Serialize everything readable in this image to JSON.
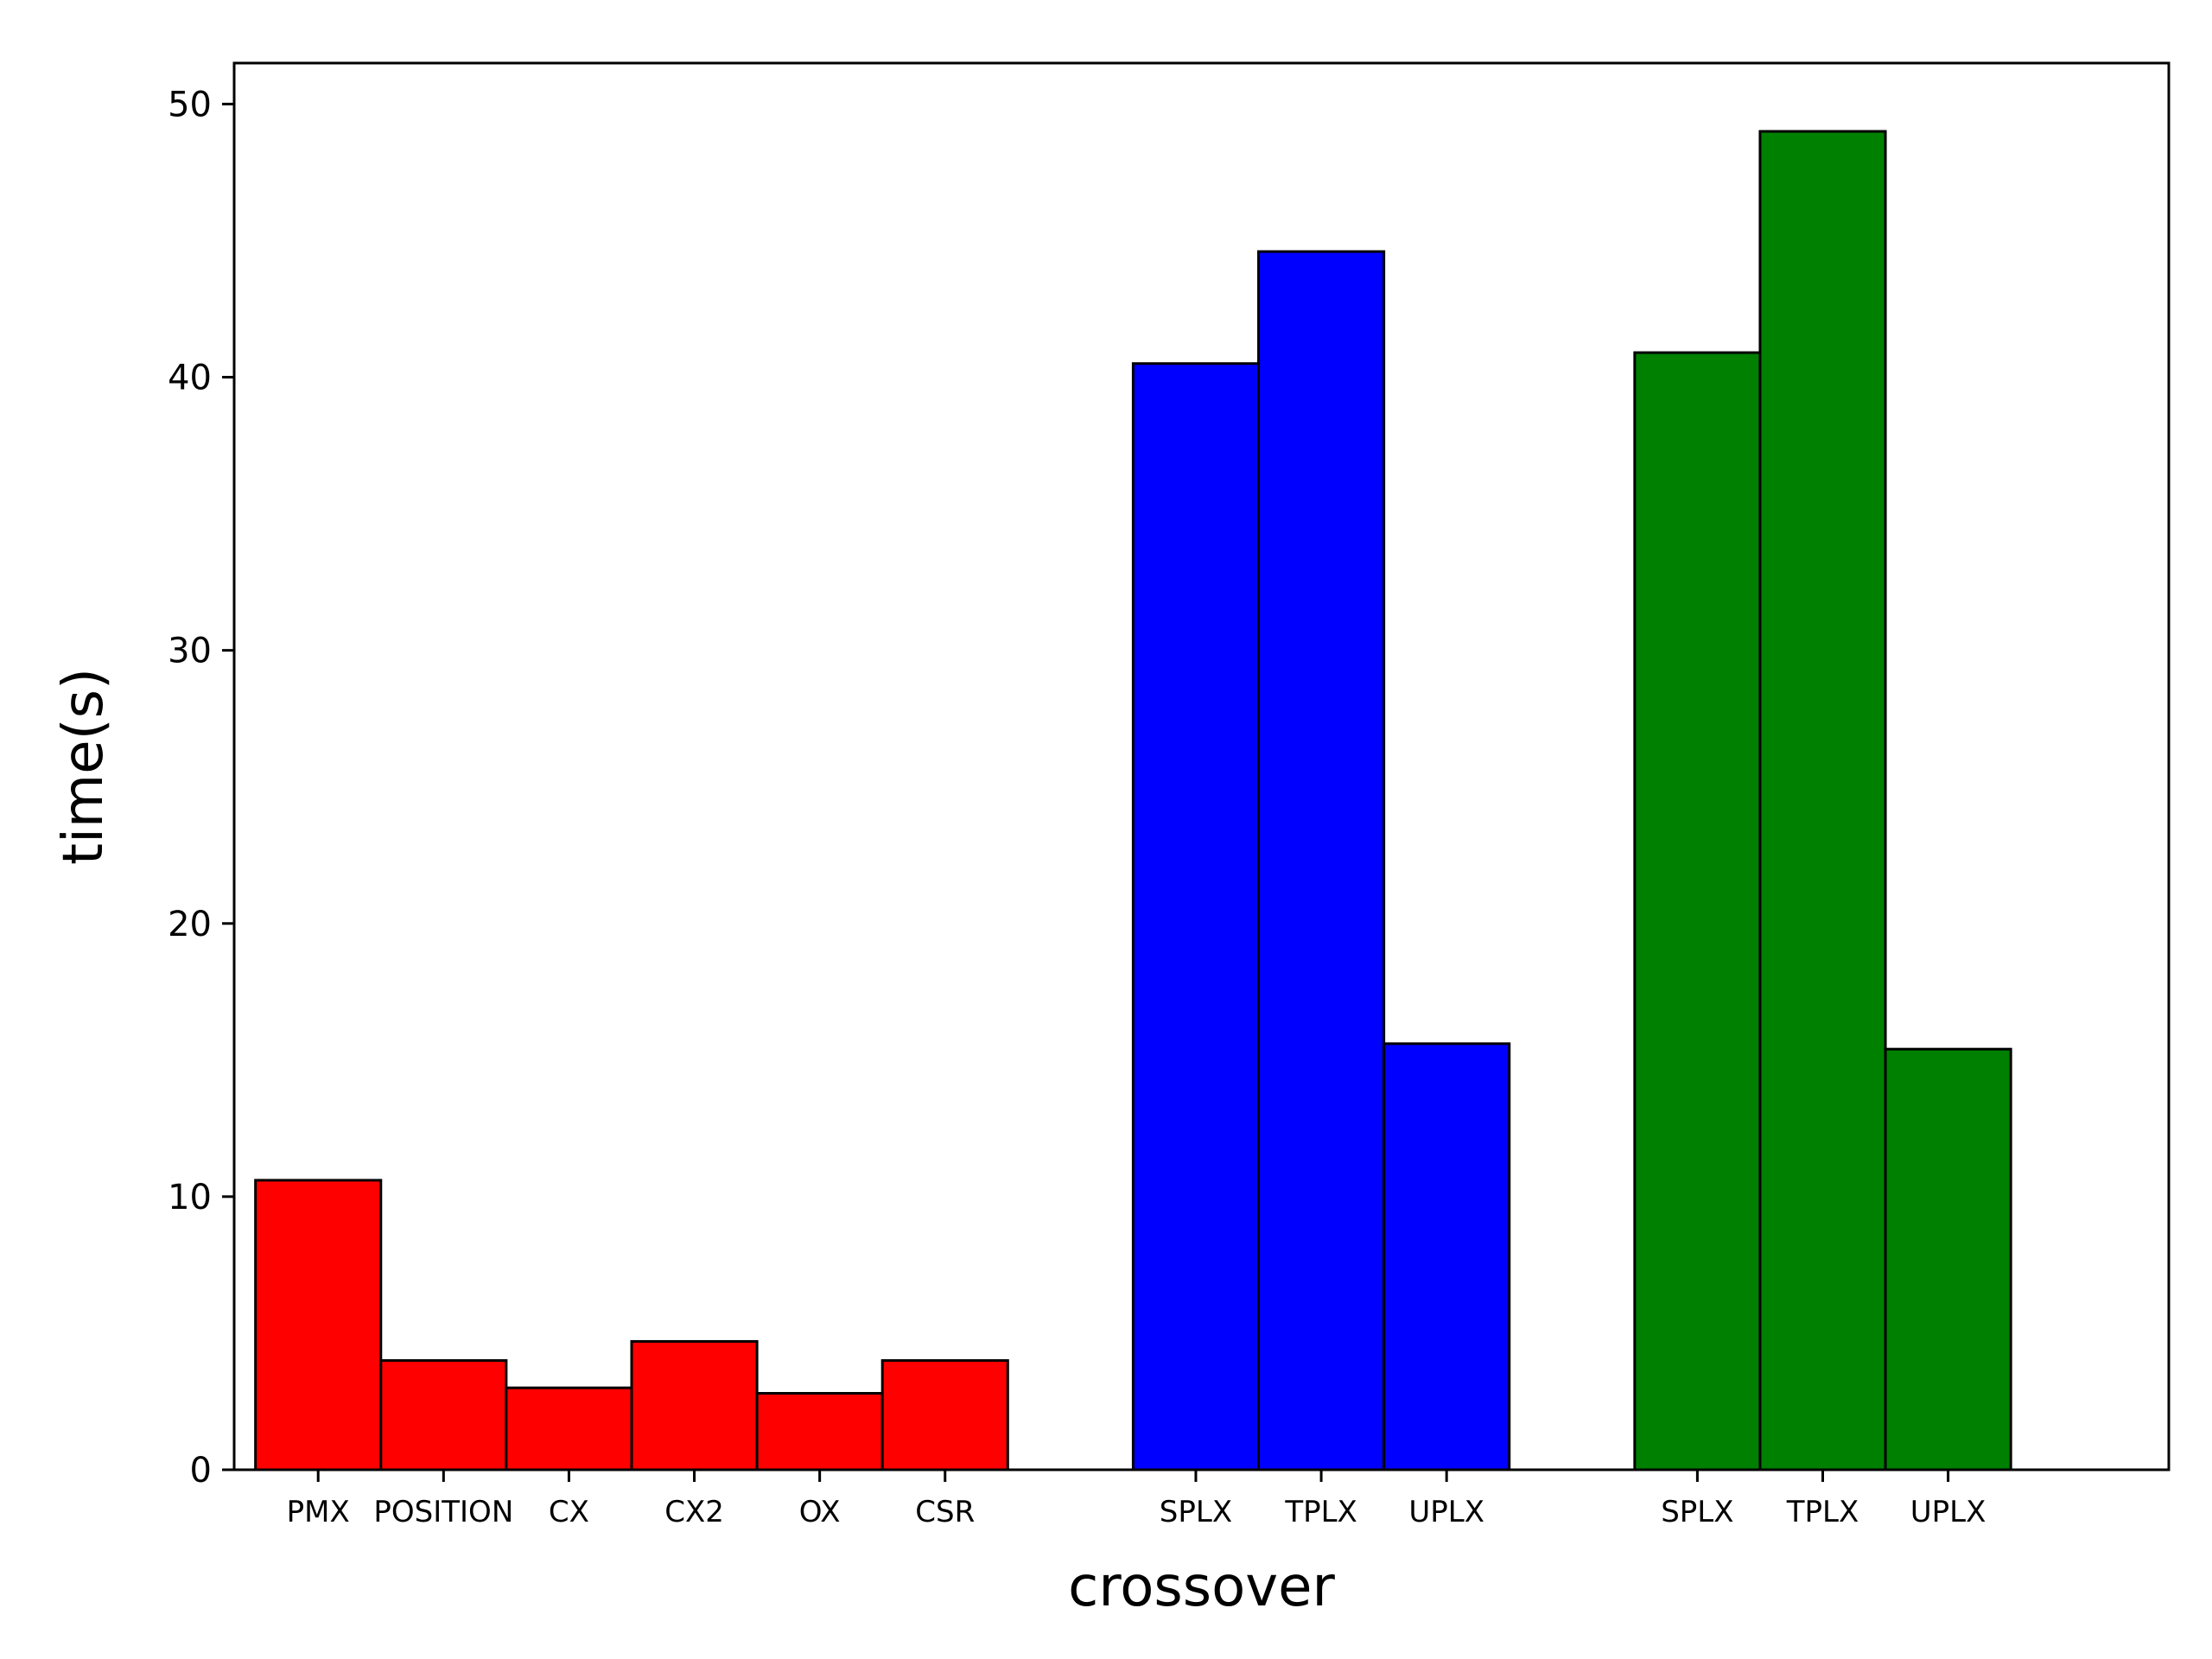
{
  "chart_data": {
    "type": "bar",
    "xlabel": "crossover",
    "ylabel": "time(s)",
    "ylim": [
      0,
      51.5
    ],
    "yticks": [
      0,
      10,
      20,
      30,
      40,
      50
    ],
    "grid": false,
    "categories": [
      "PMX",
      "POSITION",
      "CX",
      "CX2",
      "OX",
      "CSR",
      "SPLX",
      "TPLX",
      "UPLX",
      "SPLX",
      "TPLX",
      "UPLX"
    ],
    "x": [
      1,
      2,
      3,
      4,
      5,
      6,
      8,
      9,
      10,
      12,
      13,
      14
    ],
    "values": [
      10.6,
      4.0,
      3.0,
      4.7,
      2.8,
      4.0,
      40.5,
      44.6,
      15.6,
      40.9,
      49.0,
      15.4
    ],
    "colors": [
      "#ff0000",
      "#ff0000",
      "#ff0000",
      "#ff0000",
      "#ff0000",
      "#ff0000",
      "#0000ff",
      "#0000ff",
      "#0000ff",
      "#008000",
      "#008000",
      "#008000"
    ]
  }
}
